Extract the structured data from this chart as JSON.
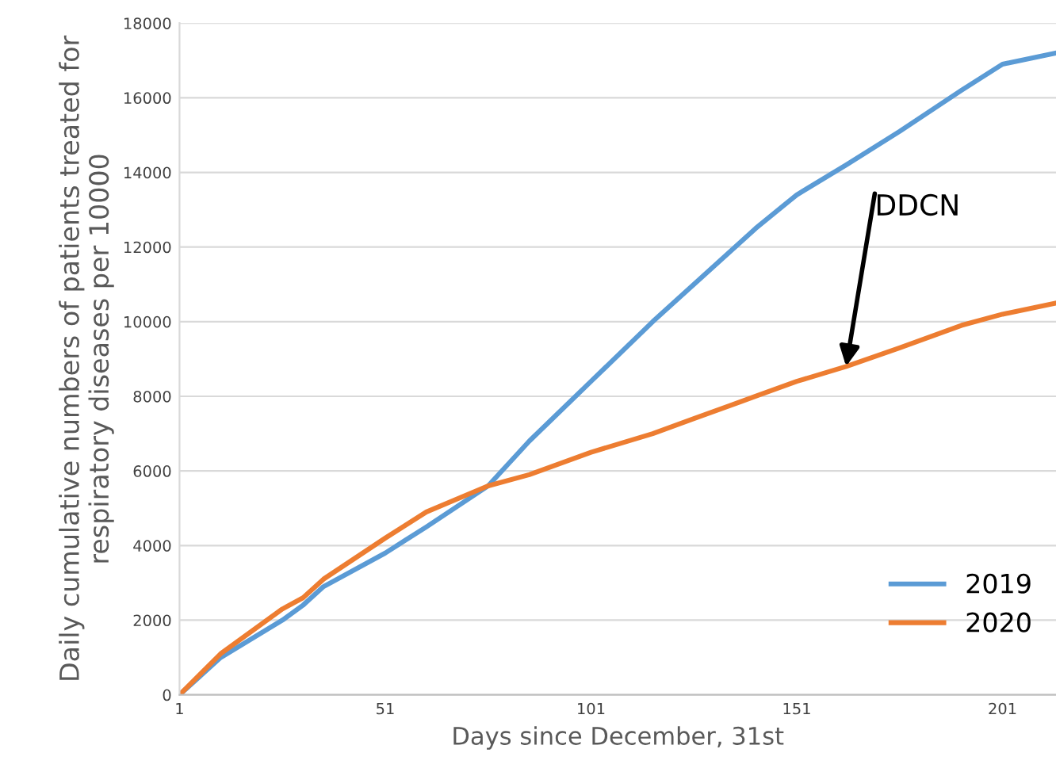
{
  "chart_data": {
    "type": "line",
    "xlabel": "Days since December, 31st",
    "ylabel": "Daily cumulative numbers of patients treated for\nrespiratory diseases per 10000",
    "x": [
      1,
      11,
      26,
      31,
      36,
      51,
      61,
      76,
      86,
      101,
      116,
      126,
      141,
      151,
      163,
      176,
      191,
      201,
      214
    ],
    "series": [
      {
        "name": "2019",
        "color": "#5b9bd5",
        "values": [
          0,
          1000,
          2000,
          2400,
          2900,
          3800,
          4500,
          5600,
          6800,
          8400,
          10000,
          11000,
          12500,
          13400,
          14200,
          15100,
          16200,
          16900,
          17200
        ]
      },
      {
        "name": "2020",
        "color": "#ed7d31",
        "values": [
          0,
          1100,
          2300,
          2600,
          3100,
          4200,
          4900,
          5600,
          5900,
          6500,
          7000,
          7400,
          8000,
          8400,
          8800,
          9300,
          9900,
          10200,
          10500
        ]
      }
    ],
    "xlim": [
      1,
      214
    ],
    "xticks": [
      1,
      51,
      101,
      151,
      201
    ],
    "ylim": [
      0,
      18000
    ],
    "yticks": [
      0,
      2000,
      4000,
      6000,
      8000,
      10000,
      12000,
      14000,
      16000,
      18000
    ],
    "grid": "y",
    "legend": "bottom right",
    "line_style": "solid",
    "marker": "none",
    "annotations": [
      {
        "text": "DDCN",
        "x": 163,
        "y": 8800
      }
    ]
  }
}
